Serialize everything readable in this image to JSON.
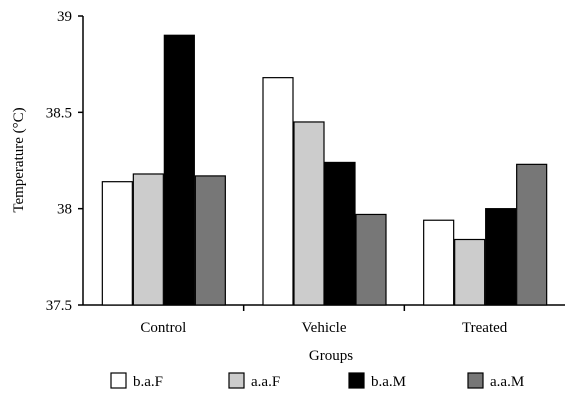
{
  "chart_data": {
    "type": "bar",
    "title": "",
    "xlabel": "Groups",
    "ylabel": "Temperature (°C)",
    "ylim": [
      37.5,
      39
    ],
    "yticks": [
      "37.5",
      "38",
      "38.5",
      "39"
    ],
    "categories": [
      "Control",
      "Vehicle",
      "Treated"
    ],
    "series": [
      {
        "name": "b.a.F",
        "values": [
          38.14,
          38.68,
          37.94
        ],
        "color": "#ffffff"
      },
      {
        "name": "a.a.F",
        "values": [
          38.18,
          38.45,
          37.84
        ],
        "color": "#cccccc"
      },
      {
        "name": "b.a.M",
        "values": [
          38.9,
          38.24,
          38.0
        ],
        "color": "#000000"
      },
      {
        "name": "a.a.M",
        "values": [
          38.17,
          37.97,
          38.23
        ],
        "color": "#777777"
      }
    ],
    "grid": false,
    "legend_position": "bottom"
  }
}
